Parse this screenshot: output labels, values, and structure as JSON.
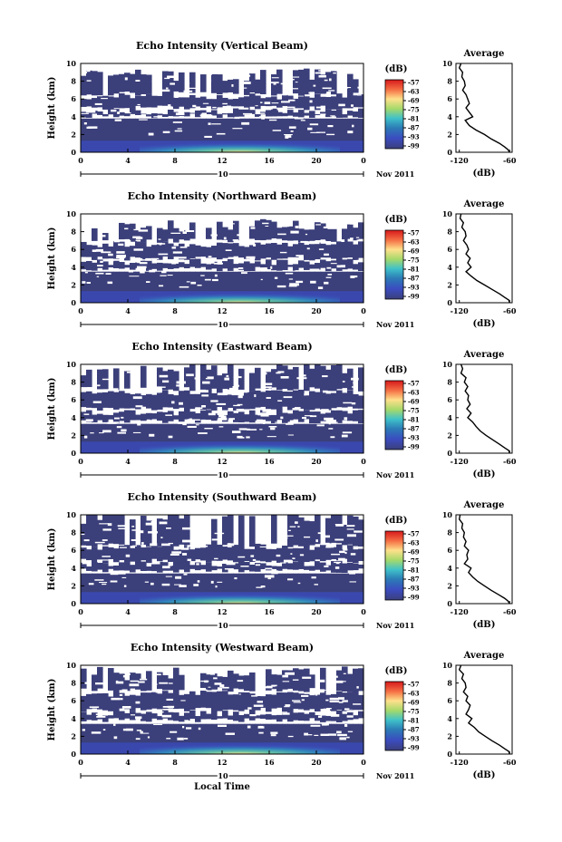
{
  "chart_data": [
    {
      "type": "heatmap",
      "title": "Echo Intensity (Vertical Beam)",
      "ylabel": "Height (km)",
      "xticks": [
        "0",
        "4",
        "8",
        "12",
        "16",
        "20",
        "0"
      ],
      "yticks": [
        "0",
        "2",
        "4",
        "6",
        "8",
        "10"
      ],
      "xlim": [
        0,
        24
      ],
      "ylim": [
        0,
        10
      ],
      "date_label": "10",
      "date_right": "Nov 2011",
      "colorbar_title": "(dB)",
      "colorbar_ticks": [
        "-57",
        "-63",
        "-69",
        "-75",
        "-81",
        "-87",
        "-93",
        "-99"
      ],
      "layers_km": [
        [
          0,
          3.8
        ],
        [
          4.1,
          4.6
        ],
        [
          5.0,
          6.3
        ],
        [
          6.6,
          8.8
        ]
      ],
      "profile_title": "Average",
      "profile_xlabel": "(dB)",
      "profile_xticks": [
        "-120",
        "-60"
      ],
      "profile_yticks": [
        "0",
        "2",
        "4",
        "6",
        "8",
        "10"
      ],
      "profile": [
        [
          -118,
          10
        ],
        [
          -120,
          9.5
        ],
        [
          -116,
          9
        ],
        [
          -117,
          8.5
        ],
        [
          -114,
          8
        ],
        [
          -113,
          7.5
        ],
        [
          -116,
          7
        ],
        [
          -112,
          6.5
        ],
        [
          -110,
          6
        ],
        [
          -108,
          5.5
        ],
        [
          -112,
          5
        ],
        [
          -108,
          4.5
        ],
        [
          -104,
          4
        ],
        [
          -113,
          3.6
        ],
        [
          -108,
          3
        ],
        [
          -100,
          2.5
        ],
        [
          -90,
          2
        ],
        [
          -82,
          1.5
        ],
        [
          -72,
          1
        ],
        [
          -66,
          0.6
        ],
        [
          -62,
          0.3
        ],
        [
          -60,
          0
        ]
      ]
    },
    {
      "type": "heatmap",
      "title": "Echo Intensity (Northward Beam)",
      "ylabel": "Height (km)",
      "xticks": [
        "0",
        "4",
        "8",
        "12",
        "16",
        "20",
        "0"
      ],
      "yticks": [
        "0",
        "2",
        "4",
        "6",
        "8",
        "10"
      ],
      "xlim": [
        0,
        24
      ],
      "ylim": [
        0,
        10
      ],
      "date_label": "10",
      "date_right": "Nov 2011",
      "colorbar_title": "(dB)",
      "colorbar_ticks": [
        "-57",
        "-63",
        "-69",
        "-75",
        "-81",
        "-87",
        "-93",
        "-99"
      ],
      "layers_km": [
        [
          0,
          3.5
        ],
        [
          3.8,
          4.6
        ],
        [
          5.0,
          6.6
        ],
        [
          7.0,
          8.6
        ]
      ],
      "profile_title": "Average",
      "profile_xlabel": "(dB)",
      "profile_xticks": [
        "-120",
        "-60"
      ],
      "profile_yticks": [
        "0",
        "2",
        "4",
        "6",
        "8",
        "10"
      ],
      "profile": [
        [
          -118,
          10
        ],
        [
          -119,
          9.5
        ],
        [
          -115,
          9
        ],
        [
          -117,
          8.5
        ],
        [
          -113,
          8
        ],
        [
          -112,
          7.5
        ],
        [
          -115,
          7
        ],
        [
          -111,
          6.5
        ],
        [
          -109,
          6
        ],
        [
          -112,
          5.5
        ],
        [
          -107,
          5
        ],
        [
          -110,
          4.5
        ],
        [
          -106,
          4
        ],
        [
          -112,
          3.5
        ],
        [
          -106,
          3
        ],
        [
          -99,
          2.5
        ],
        [
          -90,
          2
        ],
        [
          -81,
          1.5
        ],
        [
          -72,
          1
        ],
        [
          -66,
          0.6
        ],
        [
          -61,
          0.3
        ],
        [
          -60,
          0
        ]
      ]
    },
    {
      "type": "heatmap",
      "title": "Echo Intensity (Eastward Beam)",
      "ylabel": "Height (km)",
      "xticks": [
        "0",
        "4",
        "8",
        "12",
        "16",
        "20",
        "0"
      ],
      "yticks": [
        "0",
        "2",
        "4",
        "6",
        "8",
        "10"
      ],
      "xlim": [
        0,
        24
      ],
      "ylim": [
        0,
        10
      ],
      "date_label": "10",
      "date_right": "Nov 2011",
      "colorbar_title": "(dB)",
      "colorbar_ticks": [
        "-57",
        "-63",
        "-69",
        "-75",
        "-81",
        "-87",
        "-93",
        "-99"
      ],
      "layers_km": [
        [
          0,
          3.3
        ],
        [
          3.6,
          4.6
        ],
        [
          5.0,
          6.8
        ],
        [
          7.2,
          9.6
        ]
      ],
      "profile_title": "Average",
      "profile_xlabel": "(dB)",
      "profile_xticks": [
        "-120",
        "-60"
      ],
      "profile_yticks": [
        "0",
        "2",
        "4",
        "6",
        "8",
        "10"
      ],
      "profile": [
        [
          -118,
          10
        ],
        [
          -116,
          9.5
        ],
        [
          -118,
          9
        ],
        [
          -112,
          8.5
        ],
        [
          -114,
          8
        ],
        [
          -110,
          7.5
        ],
        [
          -113,
          7
        ],
        [
          -109,
          6.5
        ],
        [
          -110,
          6
        ],
        [
          -107,
          5.5
        ],
        [
          -111,
          5
        ],
        [
          -106,
          4.5
        ],
        [
          -110,
          4
        ],
        [
          -104,
          3.5
        ],
        [
          -100,
          3
        ],
        [
          -95,
          2.5
        ],
        [
          -88,
          2
        ],
        [
          -80,
          1.5
        ],
        [
          -72,
          1
        ],
        [
          -66,
          0.6
        ],
        [
          -61,
          0.3
        ],
        [
          -60,
          0
        ]
      ]
    },
    {
      "type": "heatmap",
      "title": "Echo Intensity (Southward Beam)",
      "ylabel": "Height (km)",
      "xticks": [
        "0",
        "4",
        "8",
        "12",
        "16",
        "20",
        "0"
      ],
      "yticks": [
        "0",
        "2",
        "4",
        "6",
        "8",
        "10"
      ],
      "xlim": [
        0,
        24
      ],
      "ylim": [
        0,
        10
      ],
      "date_label": "10",
      "date_right": "Nov 2011",
      "colorbar_title": "(dB)",
      "colorbar_ticks": [
        "-57",
        "-63",
        "-69",
        "-75",
        "-81",
        "-87",
        "-93",
        "-99"
      ],
      "layers_km": [
        [
          0,
          3.4
        ],
        [
          3.7,
          4.5
        ],
        [
          4.8,
          6.4
        ],
        [
          6.6,
          9.8
        ]
      ],
      "profile_title": "Average",
      "profile_xlabel": "(dB)",
      "profile_xticks": [
        "-120",
        "-60"
      ],
      "profile_yticks": [
        "0",
        "2",
        "4",
        "6",
        "8",
        "10"
      ],
      "profile": [
        [
          -119,
          10
        ],
        [
          -120,
          9.5
        ],
        [
          -116,
          9
        ],
        [
          -117,
          8.5
        ],
        [
          -114,
          8
        ],
        [
          -115,
          7.5
        ],
        [
          -112,
          7
        ],
        [
          -114,
          6.5
        ],
        [
          -109,
          6
        ],
        [
          -111,
          5.5
        ],
        [
          -110,
          5
        ],
        [
          -114,
          4.5
        ],
        [
          -106,
          4
        ],
        [
          -109,
          3.5
        ],
        [
          -104,
          3
        ],
        [
          -98,
          2.5
        ],
        [
          -90,
          2
        ],
        [
          -82,
          1.5
        ],
        [
          -73,
          1
        ],
        [
          -66,
          0.6
        ],
        [
          -62,
          0.3
        ],
        [
          -60,
          0
        ]
      ]
    },
    {
      "type": "heatmap",
      "title": "Echo Intensity (Westward Beam)",
      "ylabel": "Height (km)",
      "xlabel": "Local Time",
      "xticks": [
        "0",
        "4",
        "8",
        "12",
        "16",
        "20",
        "0"
      ],
      "yticks": [
        "0",
        "2",
        "4",
        "6",
        "8",
        "10"
      ],
      "xlim": [
        0,
        24
      ],
      "ylim": [
        0,
        10
      ],
      "date_label": "10",
      "date_right": "Nov 2011",
      "colorbar_title": "(dB)",
      "colorbar_ticks": [
        "-57",
        "-63",
        "-69",
        "-75",
        "-81",
        "-87",
        "-93",
        "-99"
      ],
      "layers_km": [
        [
          0,
          3.4
        ],
        [
          3.8,
          4.6
        ],
        [
          5.0,
          6.8
        ],
        [
          7.2,
          9.2
        ]
      ],
      "profile_title": "Average",
      "profile_xlabel": "(dB)",
      "profile_xticks": [
        "-120",
        "-60"
      ],
      "profile_yticks": [
        "0",
        "2",
        "4",
        "6",
        "8",
        "10"
      ],
      "profile": [
        [
          -118,
          10
        ],
        [
          -120,
          9.5
        ],
        [
          -115,
          9
        ],
        [
          -117,
          8.5
        ],
        [
          -113,
          8
        ],
        [
          -112,
          7.5
        ],
        [
          -115,
          7
        ],
        [
          -110,
          6.5
        ],
        [
          -112,
          6
        ],
        [
          -107,
          5.5
        ],
        [
          -109,
          5
        ],
        [
          -112,
          4.5
        ],
        [
          -105,
          4
        ],
        [
          -109,
          3.5
        ],
        [
          -102,
          3
        ],
        [
          -97,
          2.5
        ],
        [
          -89,
          2
        ],
        [
          -81,
          1.5
        ],
        [
          -72,
          1
        ],
        [
          -66,
          0.6
        ],
        [
          -61,
          0.3
        ],
        [
          -60,
          0
        ]
      ]
    }
  ],
  "colors": {
    "background": "#ffffff",
    "echo_fill": "#3b3f7a",
    "colormap": [
      "#a50026",
      "#f46d43",
      "#fdae61",
      "#fee08b",
      "#d9ef8b",
      "#66c2a5",
      "#3288bd",
      "#5e4fa2",
      "#3b3f7a"
    ]
  }
}
